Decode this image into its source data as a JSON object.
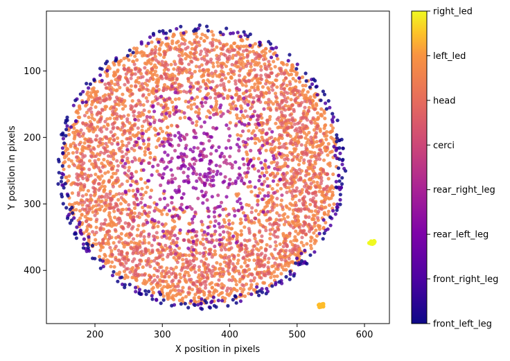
{
  "chart_data": {
    "type": "scatter",
    "title": "",
    "xlabel": "X position in pixels",
    "ylabel": "Y position in pixels",
    "xlim": [
      128,
      637
    ],
    "ylim": [
      480,
      10
    ],
    "y_inverted": true,
    "xticks": [
      200,
      300,
      400,
      500,
      600
    ],
    "yticks": [
      100,
      200,
      300,
      400
    ],
    "grid": false,
    "colormap": "plasma",
    "colorbar": {
      "categories": [
        "front_left_leg",
        "front_right_leg",
        "rear_left_leg",
        "rear_right_leg",
        "cerci",
        "head",
        "left_led",
        "right_led"
      ],
      "colors": [
        "#0d0887",
        "#4c02a1",
        "#8b0aa5",
        "#b83289",
        "#db5c68",
        "#f48849",
        "#febc2a",
        "#f0f921"
      ]
    },
    "series": [
      {
        "category": "head",
        "pattern": "disk",
        "center": [
          358,
          245
        ],
        "radius_range": [
          60,
          205
        ],
        "color": "#f48849"
      },
      {
        "category": "cerci",
        "pattern": "ring",
        "center": [
          358,
          245
        ],
        "radius_range": [
          90,
          190
        ],
        "color": "#db5c68"
      },
      {
        "category": "rear_right_leg",
        "pattern": "inner",
        "center": [
          358,
          245
        ],
        "radius_range": [
          10,
          130
        ],
        "color": "#b83289"
      },
      {
        "category": "rear_left_leg",
        "pattern": "inner",
        "center": [
          358,
          245
        ],
        "radius_range": [
          10,
          120
        ],
        "color": "#8b0aa5"
      },
      {
        "category": "front_right_leg",
        "pattern": "rim",
        "center": [
          358,
          245
        ],
        "radius_range": [
          195,
          212
        ],
        "color": "#4c02a1"
      },
      {
        "category": "front_left_leg",
        "pattern": "rim",
        "center": [
          358,
          245
        ],
        "radius_range": [
          198,
          214
        ],
        "color": "#0d0887"
      },
      {
        "category": "left_led",
        "pattern": "cluster",
        "center": [
          535,
          453
        ],
        "color": "#febc2a"
      },
      {
        "category": "right_led",
        "pattern": "cluster",
        "center": [
          611,
          358
        ],
        "color": "#f0f921"
      }
    ]
  }
}
